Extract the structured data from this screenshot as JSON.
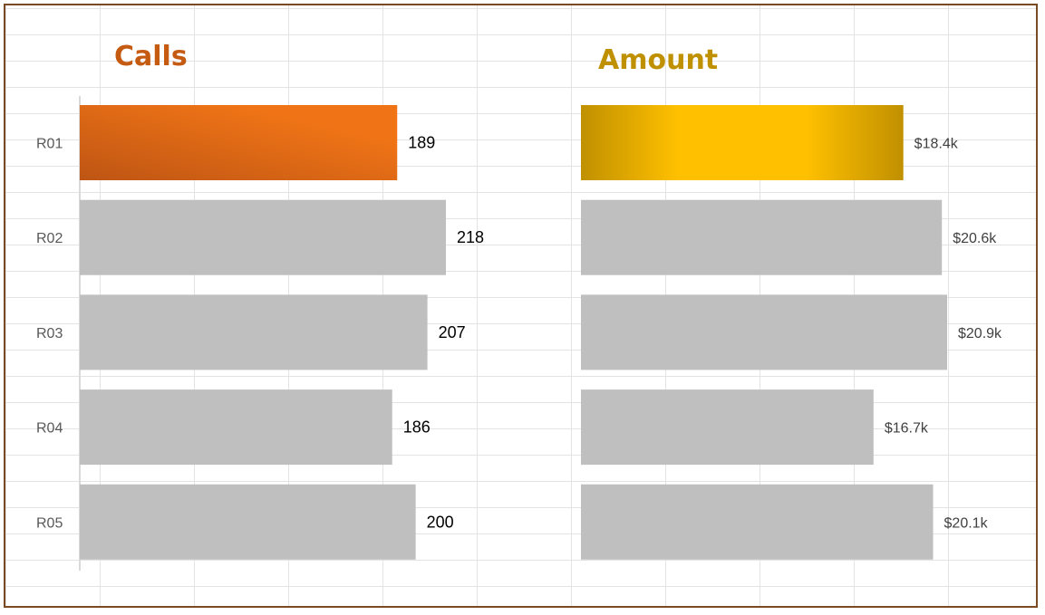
{
  "chart_data": [
    {
      "type": "bar",
      "orientation": "horizontal",
      "title": "Calls",
      "categories": [
        "R01",
        "R02",
        "R03",
        "R04",
        "R05"
      ],
      "values": [
        189,
        218,
        207,
        186,
        200
      ],
      "value_labels": [
        "189",
        "218",
        "207",
        "186",
        "200"
      ],
      "xlim": [
        0,
        218
      ],
      "highlight_index": 0,
      "colors": {
        "title": "#C55A11",
        "highlight_start": "#BE5514",
        "highlight_end": "#F07416",
        "default_bar": "#BFBFBF",
        "axis": "#D9D9D9"
      }
    },
    {
      "type": "bar",
      "orientation": "horizontal",
      "title": "Amount",
      "categories": [
        "R01",
        "R02",
        "R03",
        "R04",
        "R05"
      ],
      "values": [
        18.4,
        20.6,
        20.9,
        16.7,
        20.1
      ],
      "value_labels": [
        "$18.4k",
        "$20.6k",
        "$20.9k",
        "$16.7k",
        "$20.1k"
      ],
      "xlim": [
        0,
        20.9
      ],
      "highlight_index": 0,
      "colors": {
        "title": "#BF9000",
        "highlight_edge": "#C09000",
        "highlight_center": "#FFC000",
        "default_bar": "#BFBFBF"
      }
    }
  ]
}
